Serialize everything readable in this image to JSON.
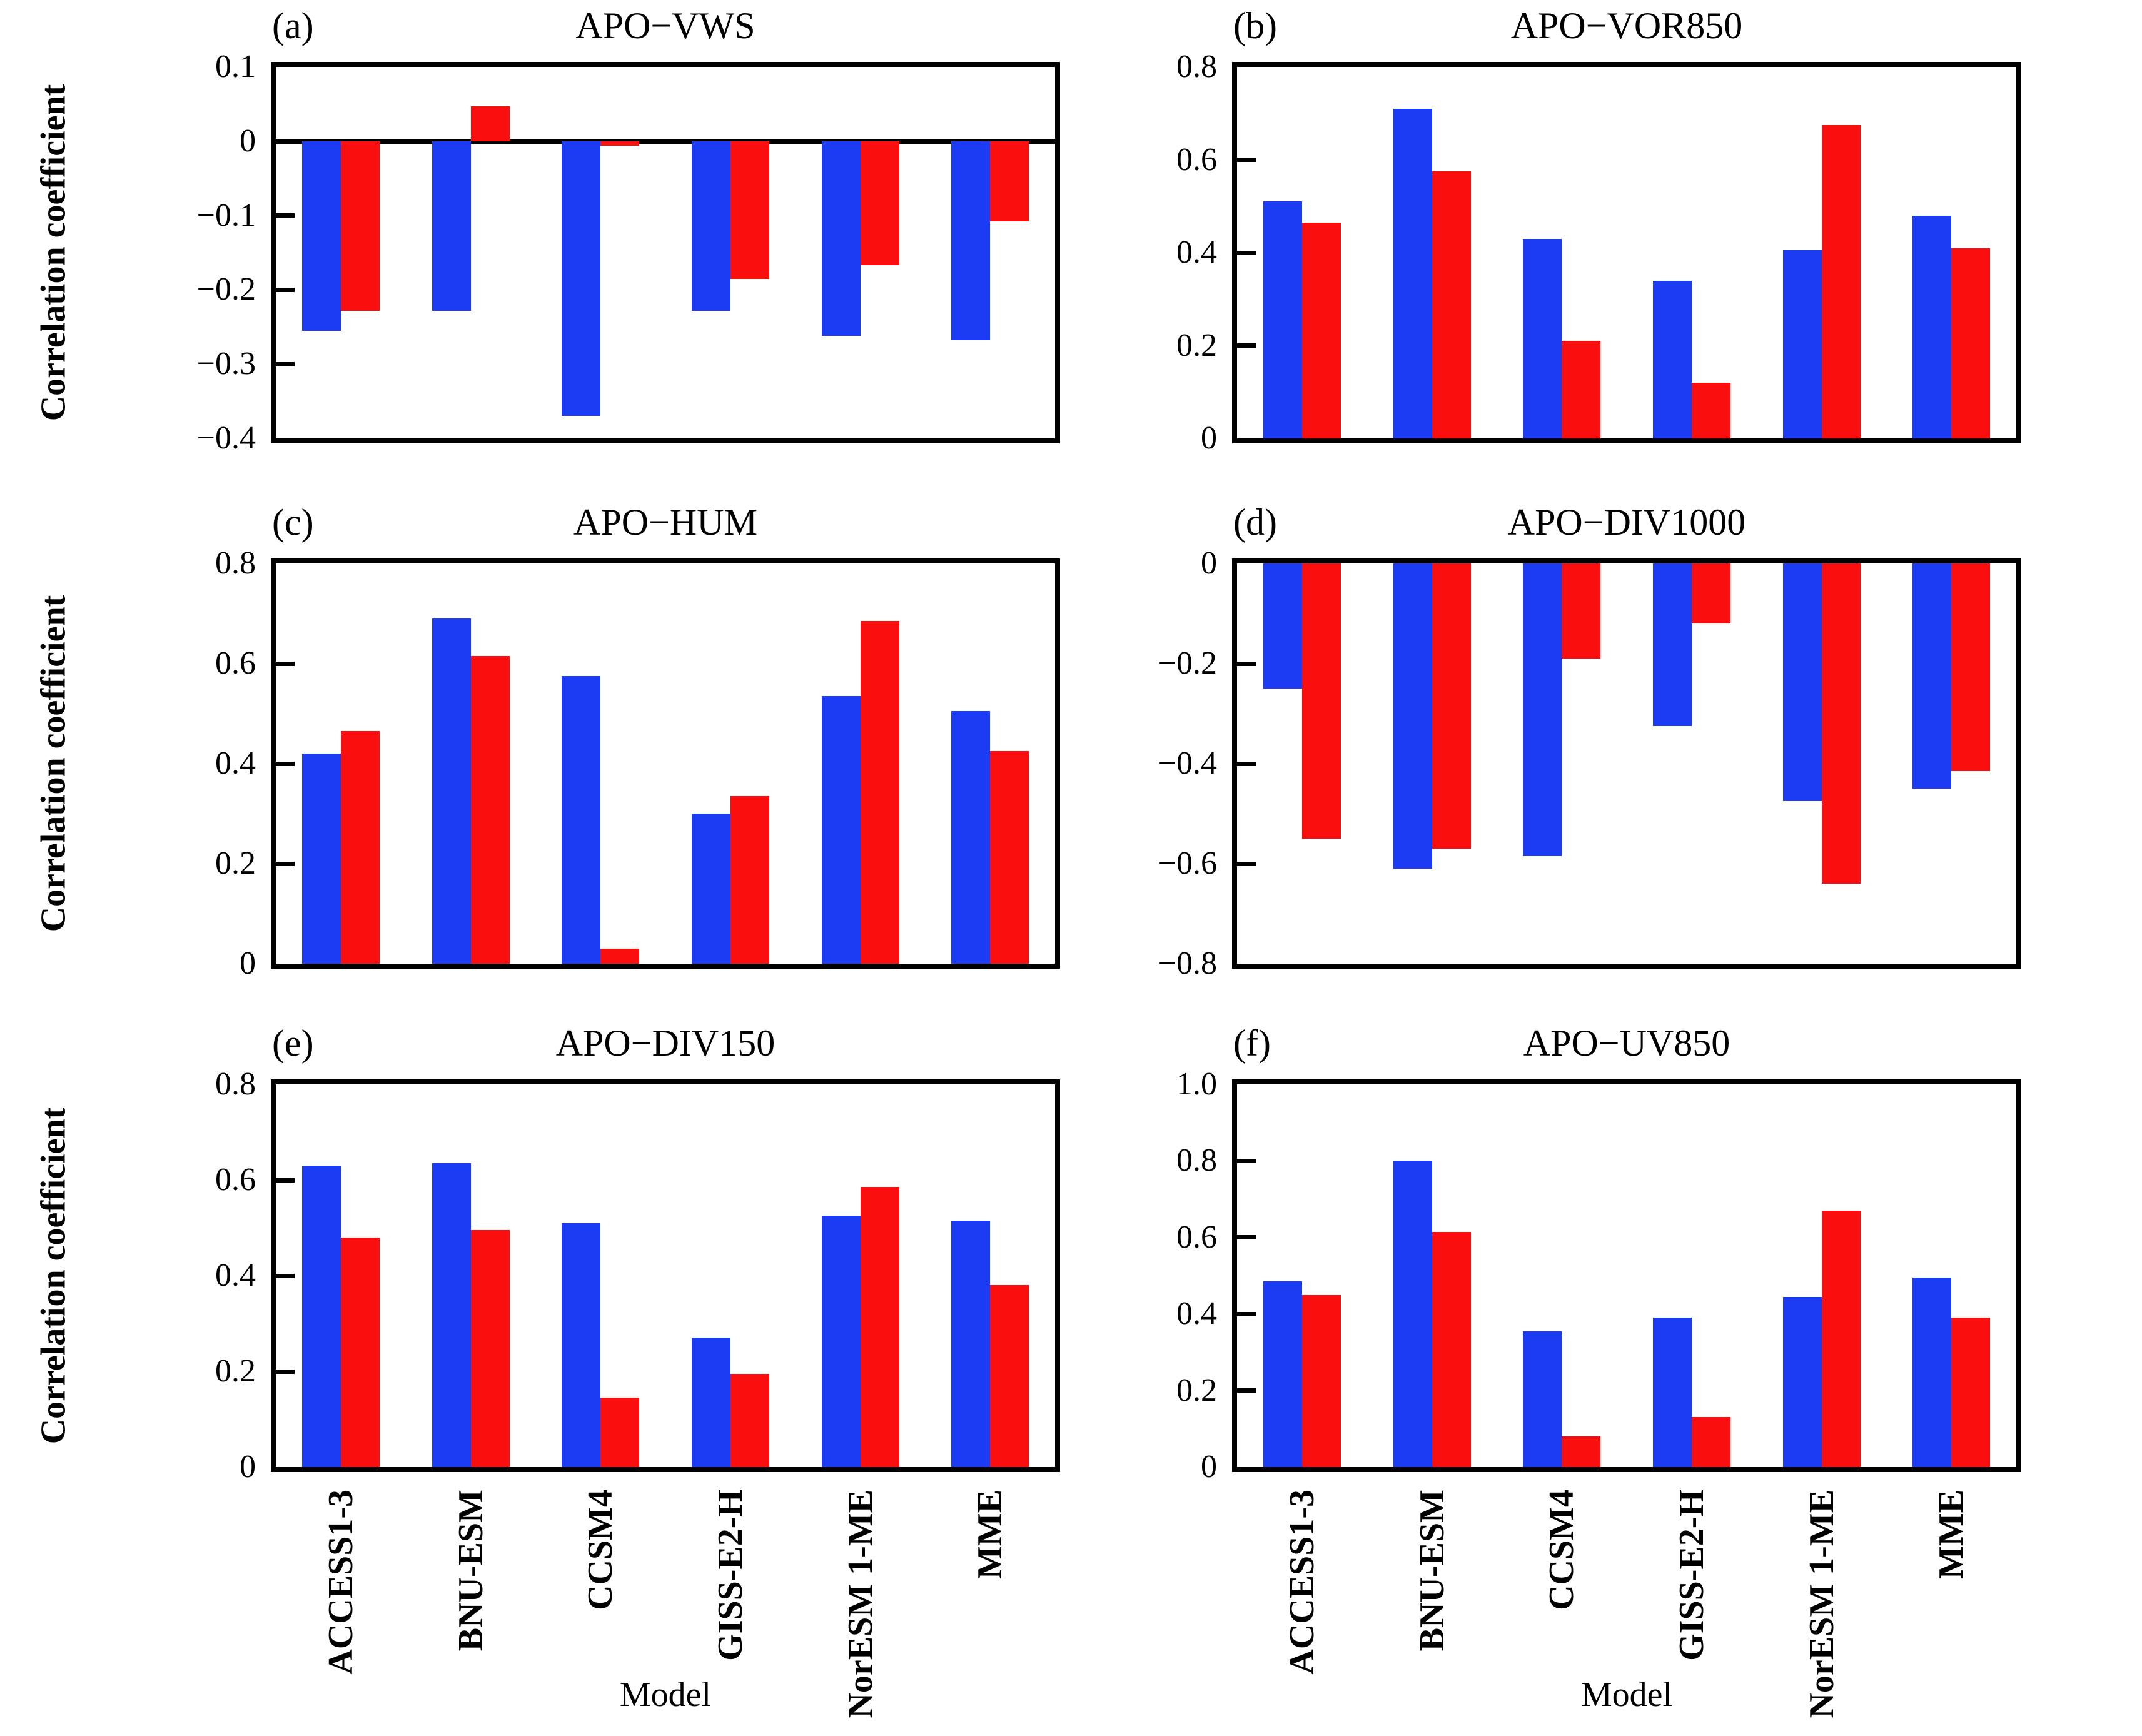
{
  "figure": {
    "ylabel": "Correlation coefficient",
    "xlabel": "Model",
    "bar_colors": {
      "blue": "#1b3cf2",
      "red": "#fa0e0e"
    },
    "axis_color": "#000000",
    "background": "#ffffff"
  },
  "chart_data": {
    "type": "bar",
    "layout": "2x3 panel grid, paired bars (blue, red) per model, no legend shown",
    "categories": [
      "ACCESS1-3",
      "BNU-ESM",
      "CCSM4",
      "GISS-E2-H",
      "NorESM 1-ME",
      "MME"
    ],
    "xlabel": "Model",
    "ylabel": "Correlation coefficient",
    "grid": false,
    "panels": [
      {
        "letter": "(a)",
        "title": "APO−VWS",
        "ylim": [
          -0.4,
          0.1
        ],
        "ytick_values": [
          0.1,
          0,
          -0.1,
          -0.2,
          -0.3,
          -0.4
        ],
        "ytick_labels": [
          "0.1",
          "0",
          "−0.1",
          "−0.2",
          "−0.3",
          "−0.4"
        ],
        "series": [
          {
            "name": "blue",
            "values": [
              -0.255,
              -0.228,
              -0.37,
              -0.228,
              -0.262,
              -0.268
            ]
          },
          {
            "name": "red",
            "values": [
              -0.228,
              0.047,
              -0.006,
              -0.185,
              -0.167,
              -0.108
            ]
          }
        ]
      },
      {
        "letter": "(b)",
        "title": "APO−VOR850",
        "ylim": [
          0,
          0.8
        ],
        "ytick_values": [
          0.8,
          0.6,
          0.4,
          0.2,
          0
        ],
        "ytick_labels": [
          "0.8",
          "0.6",
          "0.4",
          "0.2",
          "0"
        ],
        "series": [
          {
            "name": "blue",
            "values": [
              0.51,
              0.71,
              0.43,
              0.34,
              0.405,
              0.48
            ]
          },
          {
            "name": "red",
            "values": [
              0.465,
              0.575,
              0.21,
              0.12,
              0.675,
              0.41
            ]
          }
        ]
      },
      {
        "letter": "(c)",
        "title": "APO−HUM",
        "ylim": [
          0,
          0.8
        ],
        "ytick_values": [
          0.8,
          0.6,
          0.4,
          0.2,
          0
        ],
        "ytick_labels": [
          "0.8",
          "0.6",
          "0.4",
          "0.2",
          "0"
        ],
        "series": [
          {
            "name": "blue",
            "values": [
              0.42,
              0.69,
              0.575,
              0.3,
              0.535,
              0.505
            ]
          },
          {
            "name": "red",
            "values": [
              0.465,
              0.615,
              0.03,
              0.335,
              0.685,
              0.425
            ]
          }
        ]
      },
      {
        "letter": "(d)",
        "title": "APO−DIV1000",
        "ylim": [
          -0.8,
          0
        ],
        "ytick_values": [
          0,
          -0.2,
          -0.4,
          -0.6,
          -0.8
        ],
        "ytick_labels": [
          "0",
          "−0.2",
          "−0.4",
          "−0.6",
          "−0.8"
        ],
        "series": [
          {
            "name": "blue",
            "values": [
              -0.25,
              -0.61,
              -0.585,
              -0.325,
              -0.475,
              -0.45
            ]
          },
          {
            "name": "red",
            "values": [
              -0.55,
              -0.57,
              -0.19,
              -0.12,
              -0.64,
              -0.415
            ]
          }
        ]
      },
      {
        "letter": "(e)",
        "title": "APO−DIV150",
        "ylim": [
          0,
          0.8
        ],
        "ytick_values": [
          0.8,
          0.6,
          0.4,
          0.2,
          0
        ],
        "ytick_labels": [
          "0.8",
          "0.6",
          "0.4",
          "0.2",
          "0"
        ],
        "series": [
          {
            "name": "blue",
            "values": [
              0.63,
              0.635,
              0.51,
              0.27,
              0.525,
              0.515
            ]
          },
          {
            "name": "red",
            "values": [
              0.48,
              0.495,
              0.145,
              0.195,
              0.585,
              0.38
            ]
          }
        ]
      },
      {
        "letter": "(f)",
        "title": "APO−UV850",
        "ylim": [
          0,
          1.0
        ],
        "ytick_values": [
          1.0,
          0.8,
          0.6,
          0.4,
          0.2,
          0
        ],
        "ytick_labels": [
          "1.0",
          "0.8",
          "0.6",
          "0.4",
          "0.2",
          "0"
        ],
        "series": [
          {
            "name": "blue",
            "values": [
              0.485,
              0.8,
              0.355,
              0.39,
              0.445,
              0.495
            ]
          },
          {
            "name": "red",
            "values": [
              0.45,
              0.615,
              0.08,
              0.13,
              0.67,
              0.39
            ]
          }
        ]
      }
    ]
  }
}
